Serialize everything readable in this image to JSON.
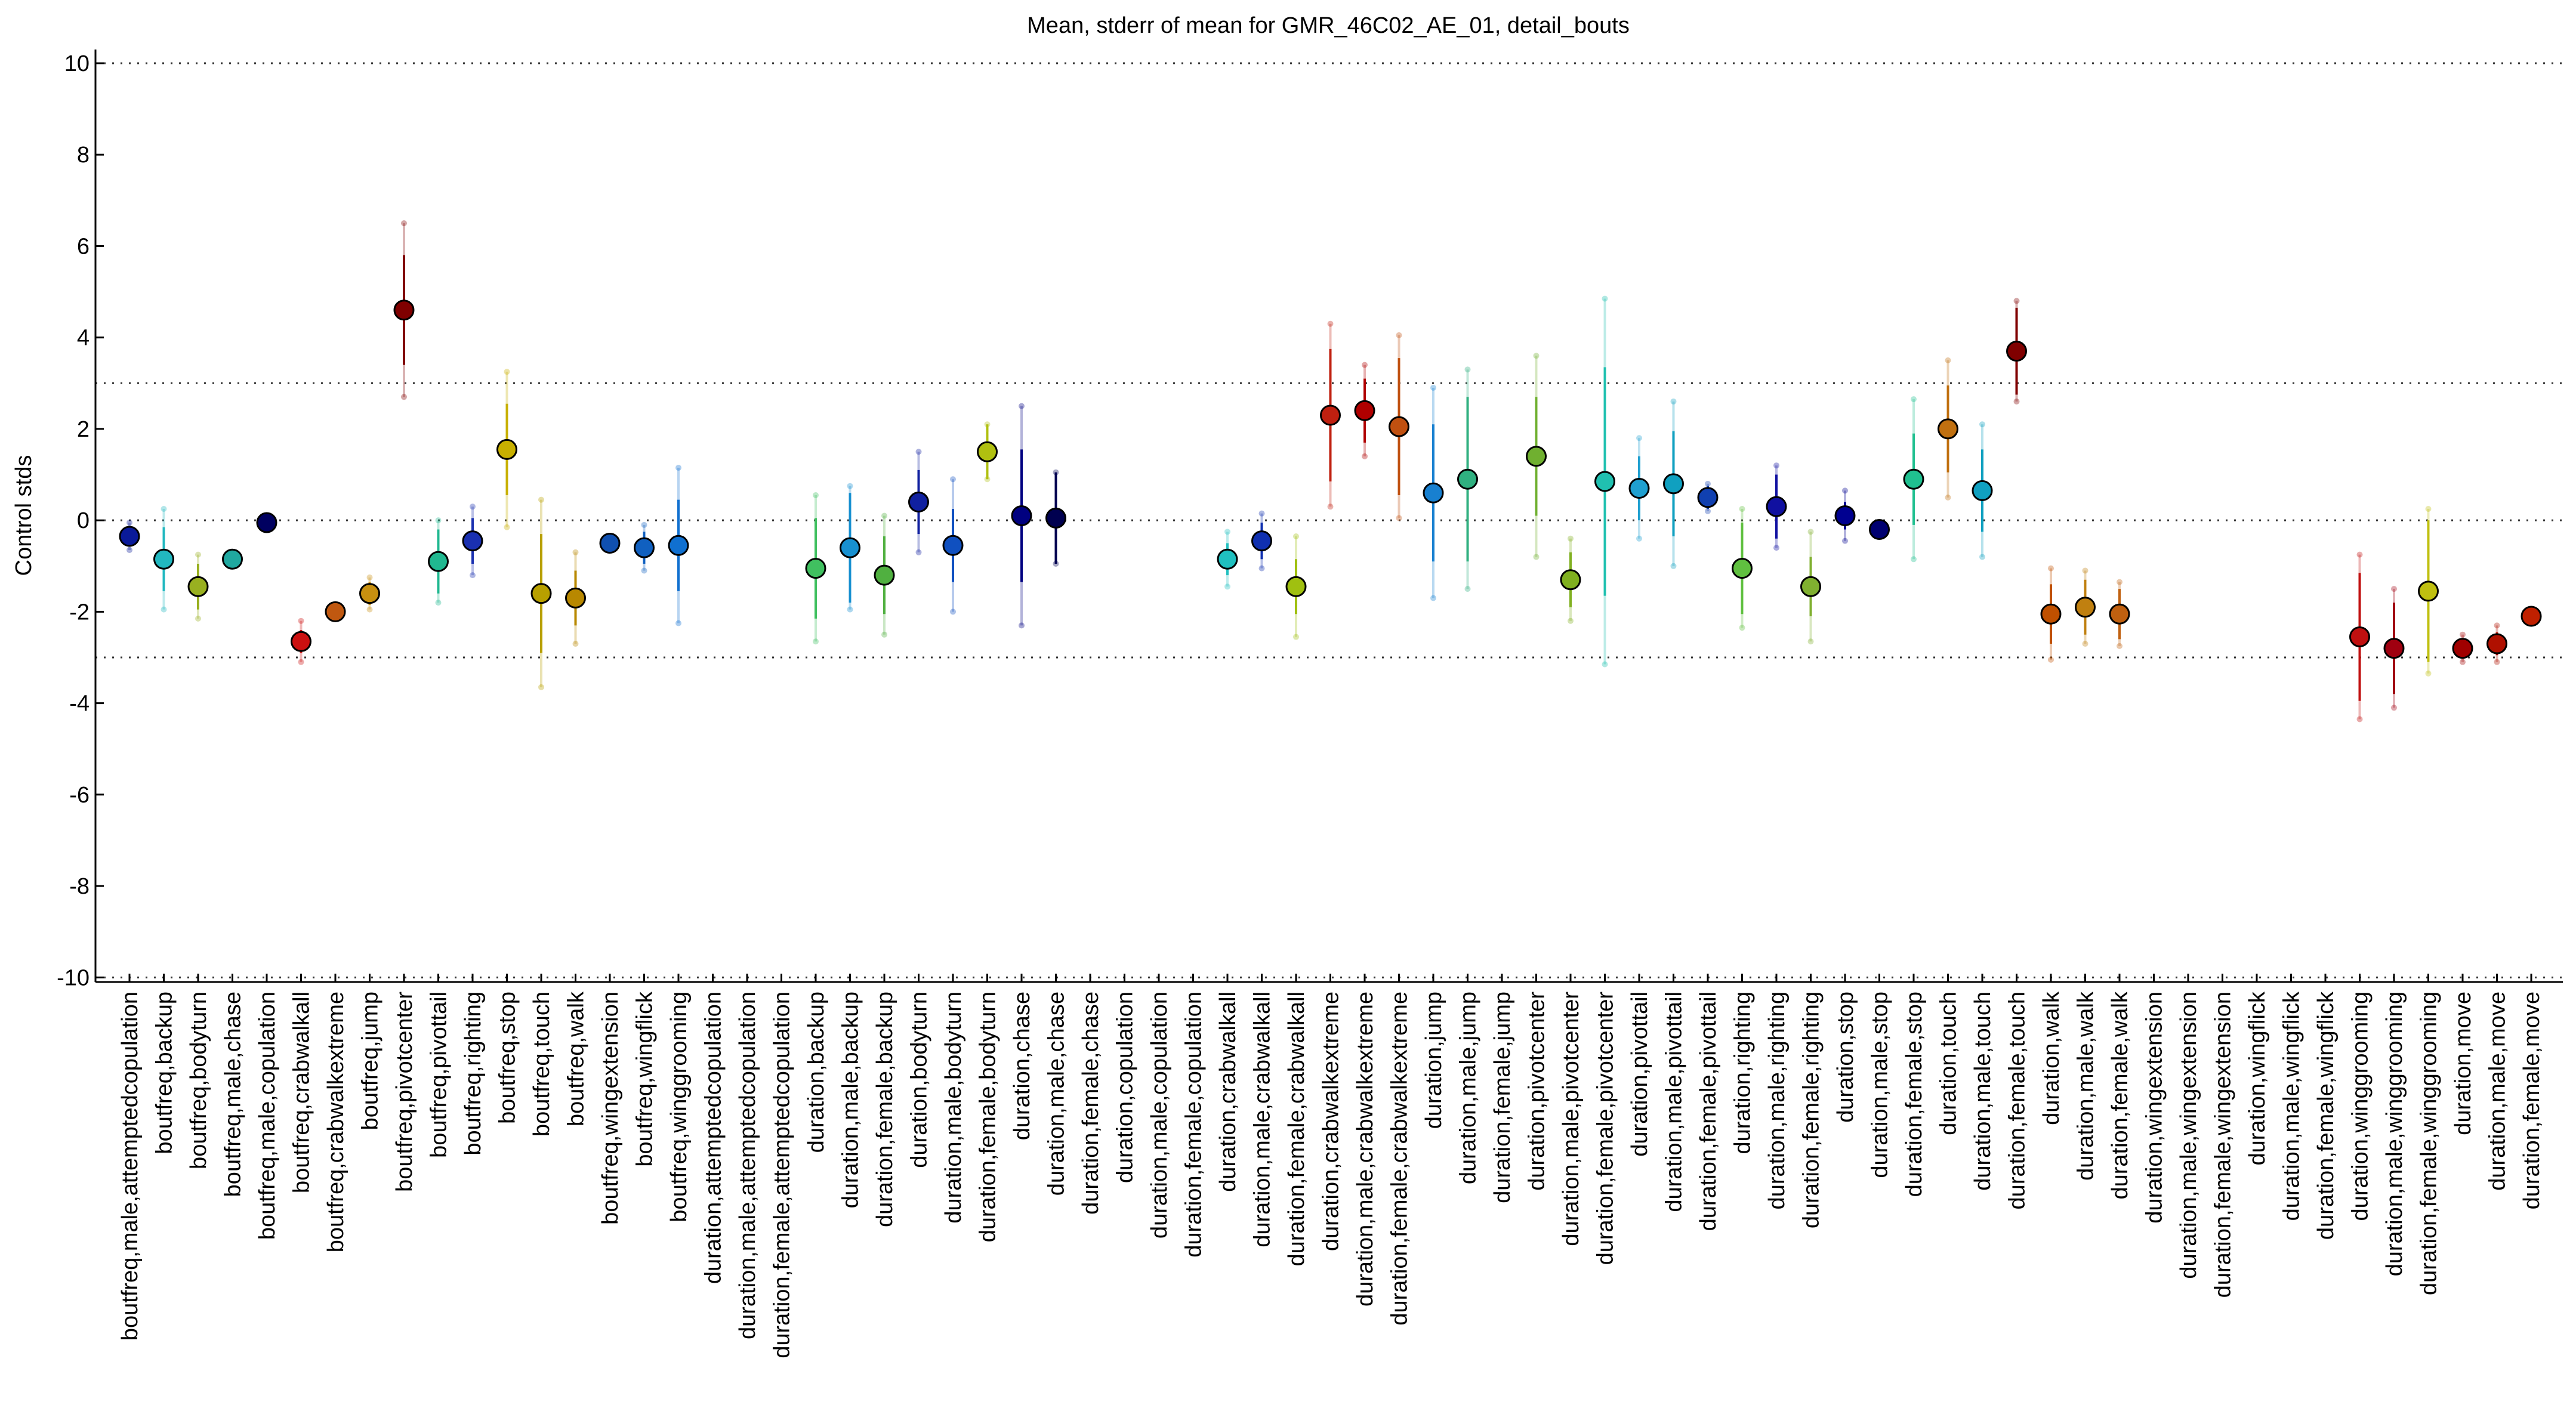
{
  "chart_data": {
    "type": "errorbar",
    "title": "Mean, stderr of mean for GMR_46C02_AE_01, detail_bouts",
    "y_label": "Control stds",
    "categories": [
      "boutfreq,male,attemptedcopulation",
      "boutfreq,backup",
      "boutfreq,bodyturn",
      "boutfreq,male,chase",
      "boutfreq,male,copulation",
      "boutfreq,crabwalkall",
      "boutfreq,crabwalkextreme",
      "boutfreq,jump",
      "boutfreq,pivotcenter",
      "boutfreq,pivottail",
      "boutfreq,righting",
      "boutfreq,stop",
      "boutfreq,touch",
      "boutfreq,walk",
      "boutfreq,wingextension",
      "boutfreq,wingflick",
      "boutfreq,winggrooming",
      "duration,attemptedcopulation",
      "duration,male,attemptedcopulation",
      "duration,female,attemptedcopulation",
      "duration,backup",
      "duration,male,backup",
      "duration,female,backup",
      "duration,bodyturn",
      "duration,male,bodyturn",
      "duration,female,bodyturn",
      "duration,chase",
      "duration,male,chase",
      "duration,female,chase",
      "duration,copulation",
      "duration,male,copulation",
      "duration,female,copulation",
      "duration,crabwalkall",
      "duration,male,crabwalkall",
      "duration,female,crabwalkall",
      "duration,crabwalkextreme",
      "duration,male,crabwalkextreme",
      "duration,female,crabwalkextreme",
      "duration,jump",
      "duration,male,jump",
      "duration,female,jump",
      "duration,pivotcenter",
      "duration,male,pivotcenter",
      "duration,female,pivotcenter",
      "duration,pivottail",
      "duration,male,pivottail",
      "duration,female,pivottail",
      "duration,righting",
      "duration,male,righting",
      "duration,female,righting",
      "duration,stop",
      "duration,male,stop",
      "duration,female,stop",
      "duration,touch",
      "duration,male,touch",
      "duration,female,touch",
      "duration,walk",
      "duration,male,walk",
      "duration,female,walk",
      "duration,wingextension",
      "duration,male,wingextension",
      "duration,female,wingextension",
      "duration,wingflick",
      "duration,male,wingflick",
      "duration,female,wingflick",
      "duration,winggrooming",
      "duration,male,winggrooming",
      "duration,female,winggrooming",
      "duration,move",
      "duration,male,move",
      "duration,female,move"
    ],
    "values": [
      -0.35,
      -0.85,
      -1.45,
      -0.85,
      -0.05,
      -2.65,
      -2.0,
      -1.6,
      4.6,
      -0.9,
      -0.45,
      1.55,
      -1.6,
      -1.7,
      -0.5,
      -0.6,
      -0.55,
      null,
      null,
      null,
      -1.05,
      -0.6,
      -1.2,
      0.4,
      -0.55,
      1.5,
      0.1,
      0.05,
      null,
      null,
      null,
      null,
      -0.85,
      -0.45,
      -1.45,
      2.3,
      2.4,
      2.05,
      0.6,
      0.9,
      null,
      1.4,
      -1.3,
      0.85,
      0.7,
      0.8,
      0.5,
      -1.05,
      0.3,
      -1.45,
      0.1,
      -0.2,
      0.9,
      2.0,
      0.65,
      3.7,
      -2.05,
      -1.9,
      -2.05,
      null,
      null,
      null,
      null,
      null,
      null,
      -2.55,
      -2.8,
      -1.55,
      -2.8,
      -2.7,
      -2.1
    ],
    "errors": [
      0.2,
      0.7,
      0.5,
      0.1,
      0.05,
      0.25,
      0.1,
      0.25,
      1.2,
      0.7,
      0.5,
      1.0,
      1.3,
      0.6,
      0.05,
      0.35,
      1.0,
      null,
      null,
      null,
      1.1,
      1.2,
      0.85,
      0.7,
      0.8,
      0.6,
      1.45,
      1.0,
      null,
      null,
      null,
      null,
      0.35,
      0.4,
      0.6,
      1.45,
      0.7,
      1.5,
      1.5,
      1.8,
      null,
      1.3,
      0.6,
      2.5,
      0.7,
      1.15,
      0.25,
      1.0,
      0.7,
      0.65,
      0.3,
      0.05,
      1.0,
      0.95,
      0.9,
      0.95,
      0.65,
      0.6,
      0.55,
      null,
      null,
      null,
      null,
      null,
      null,
      1.4,
      1.0,
      1.55,
      0.2,
      0.25,
      0.05
    ],
    "outer_errors": [
      0.3,
      1.1,
      0.7,
      0.15,
      0.08,
      0.45,
      0.15,
      0.35,
      1.9,
      0.9,
      0.75,
      1.7,
      2.05,
      1.0,
      0.08,
      0.5,
      1.7,
      null,
      null,
      null,
      1.6,
      1.35,
      1.3,
      1.1,
      1.45,
      0.6,
      2.4,
      1.0,
      null,
      null,
      null,
      null,
      0.6,
      0.6,
      1.1,
      2.0,
      1.0,
      2.0,
      2.3,
      2.4,
      null,
      2.2,
      0.9,
      4.0,
      1.1,
      1.8,
      0.3,
      1.3,
      0.9,
      1.2,
      0.55,
      0.08,
      1.75,
      1.5,
      1.45,
      1.1,
      1.0,
      0.8,
      0.7,
      null,
      null,
      null,
      null,
      null,
      null,
      1.8,
      1.3,
      1.8,
      0.3,
      0.4,
      0.08
    ],
    "colors": [
      "#0a1a99",
      "#22b8c0",
      "#99b020",
      "#20a8a0",
      "#000060",
      "#cc1010",
      "#c05810",
      "#c89010",
      "#800000",
      "#20b890",
      "#1a30b0",
      "#c8b000",
      "#b8a000",
      "#b88800",
      "#1050b0",
      "#1060c0",
      "#1070d0",
      "#999999",
      "#999999",
      "#999999",
      "#40c060",
      "#1890d0",
      "#50b040",
      "#1020a0",
      "#1050c0",
      "#b0c010",
      "#000080",
      "#000050",
      "#999999",
      "#999999",
      "#999999",
      "#999999",
      "#20c0c0",
      "#1030b0",
      "#a0c010",
      "#c02010",
      "#b00000",
      "#c05010",
      "#1880d0",
      "#30b080",
      "#999999",
      "#70b030",
      "#80b020",
      "#20c0b0",
      "#20a0d0",
      "#10a0c0",
      "#1040b0",
      "#60c040",
      "#1010a0",
      "#80b030",
      "#000090",
      "#000070",
      "#20c090",
      "#c07010",
      "#10a0c0",
      "#800000",
      "#c05000",
      "#c08010",
      "#c06010",
      "#999999",
      "#999999",
      "#999999",
      "#999999",
      "#999999",
      "#999999",
      "#c01010",
      "#a00010",
      "#c0c010",
      "#a00000",
      "#b01000",
      "#c02000"
    ],
    "ylim": [
      -10.1,
      10.3
    ],
    "yticks": [
      -10,
      -8,
      -6,
      -4,
      -2,
      0,
      2,
      4,
      6,
      8,
      10
    ],
    "reference_lines": [
      10,
      3,
      0,
      -3,
      -10
    ]
  }
}
